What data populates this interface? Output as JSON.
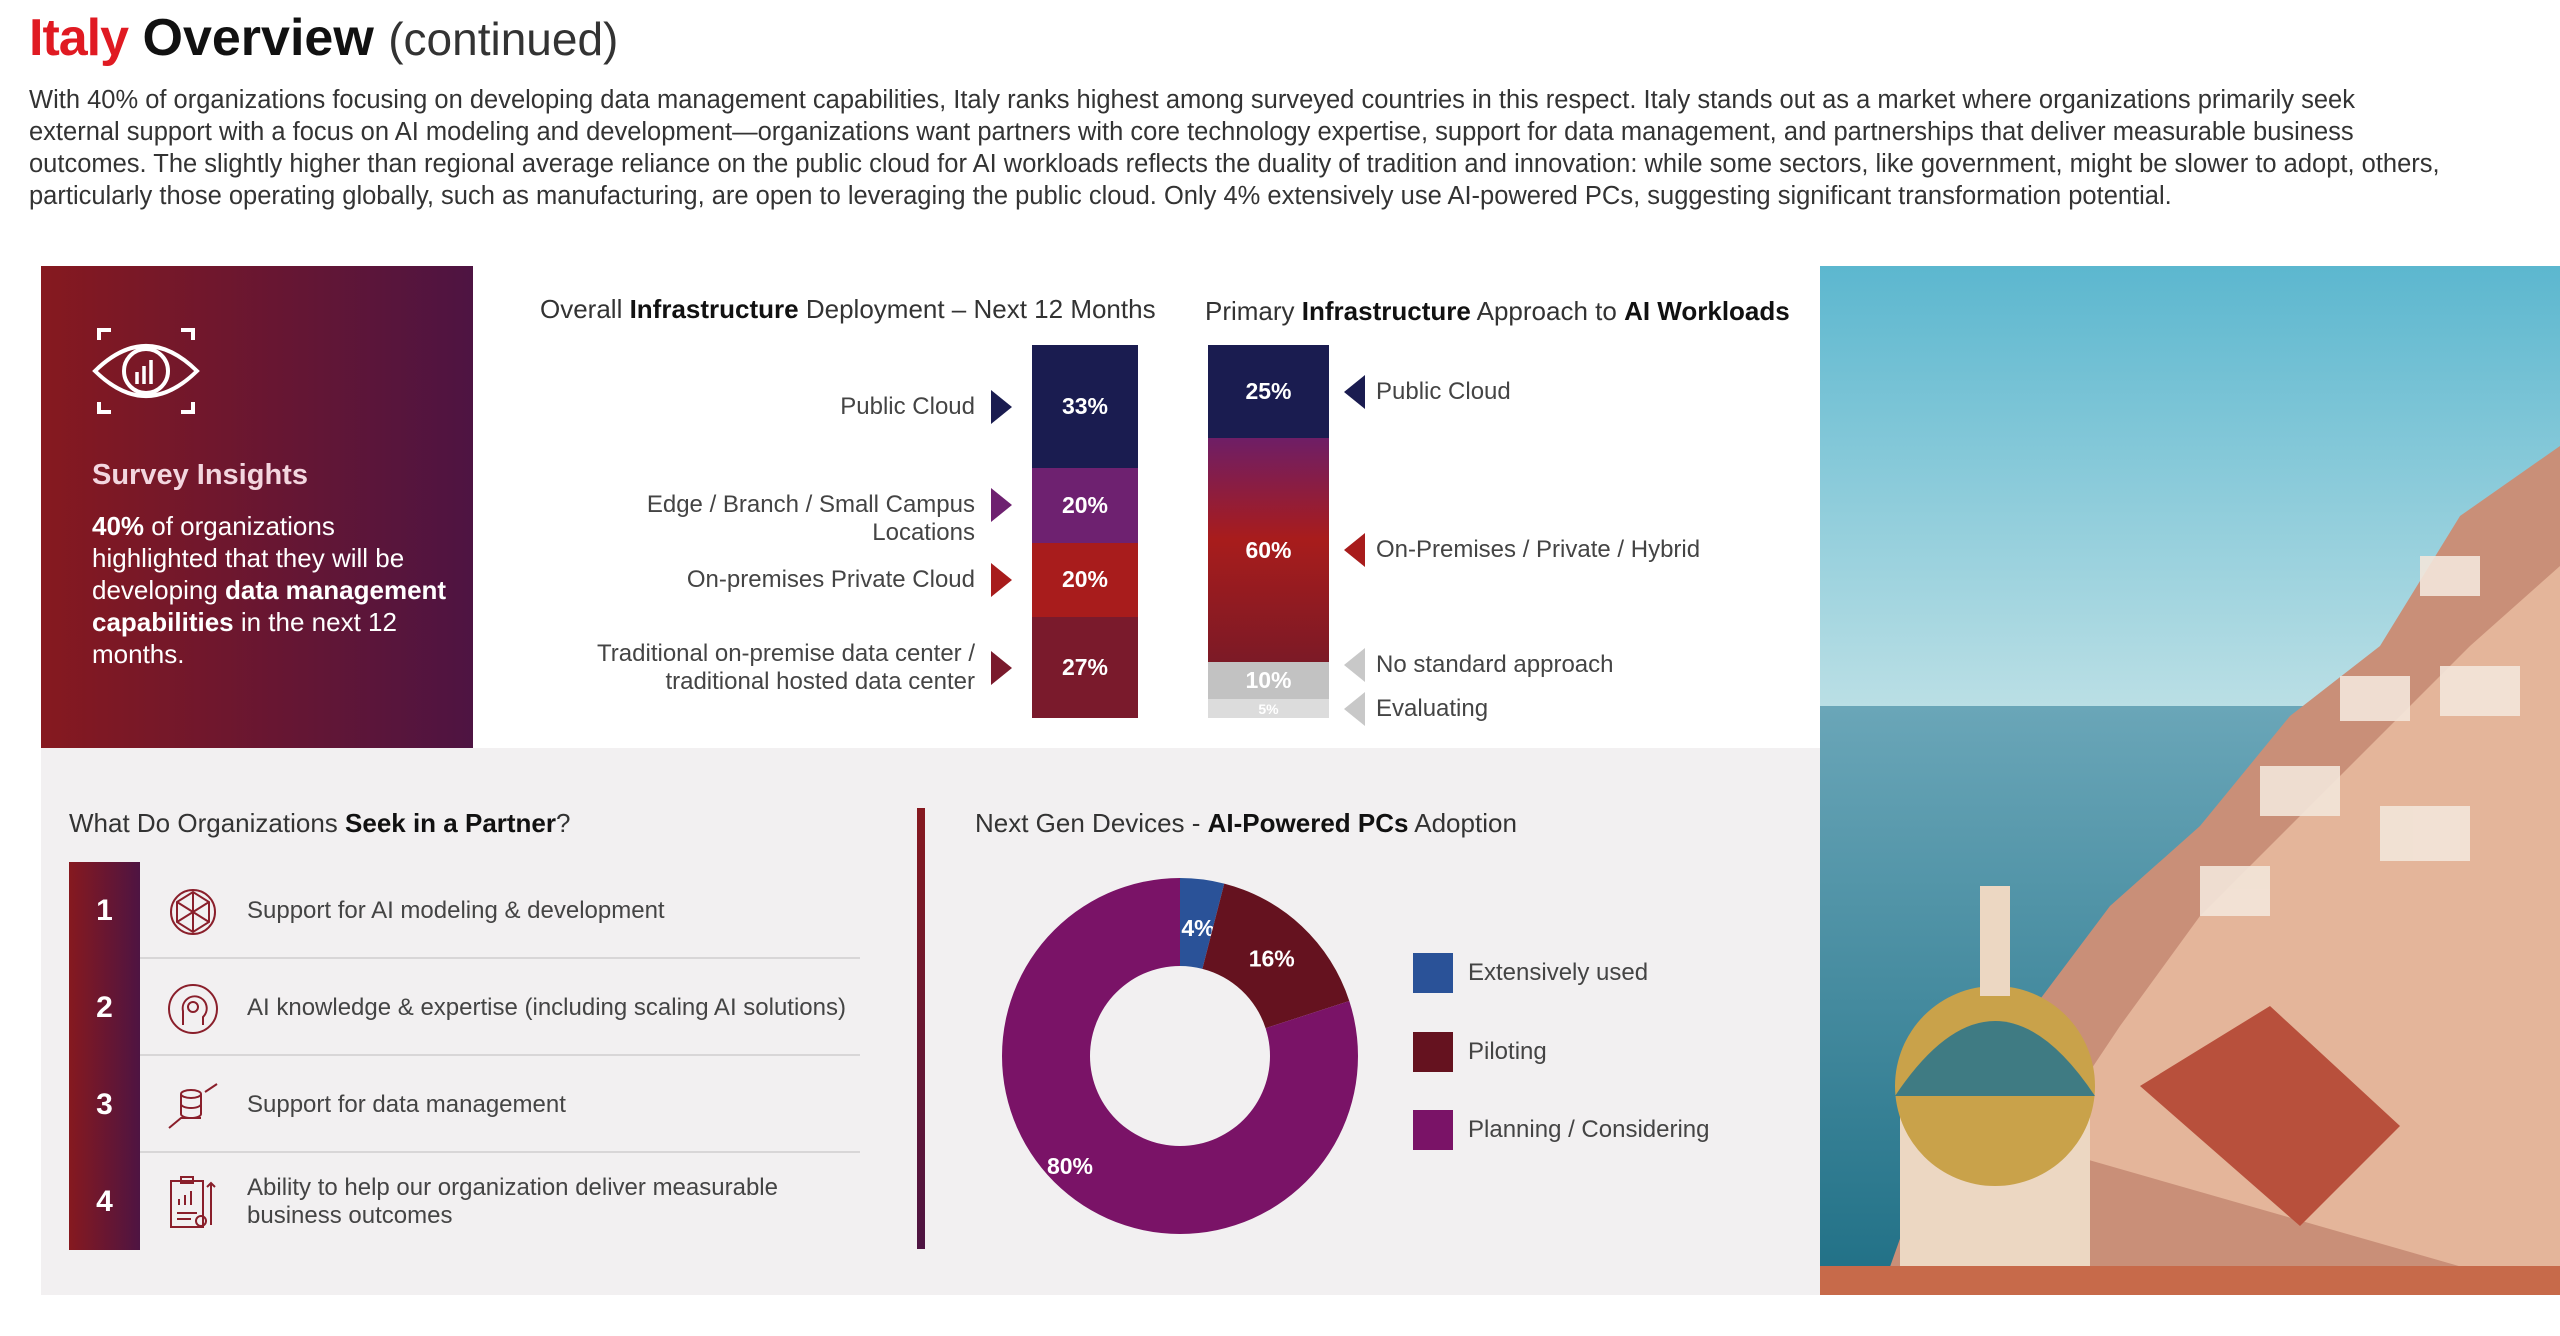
{
  "title": {
    "country": "Italy",
    "word": "Overview",
    "suffix": "(continued)"
  },
  "intro": "With 40% of organizations focusing on developing data management capabilities, Italy ranks highest among surveyed countries in this respect. Italy stands out as a market where organizations primarily seek external support with a focus on AI modeling and development—organizations want partners with core technology expertise, support for data management, and partnerships that deliver measurable business outcomes. The slightly higher than regional average reliance on the public cloud for AI workloads reflects the duality of tradition and innovation: while some sectors, like government, might be slower to adopt, others, particularly those operating globally, such as manufacturing, are open to leveraging the public cloud. Only 4% extensively use AI-powered PCs, suggesting significant transformation potential.",
  "survey": {
    "heading": "Survey Insights",
    "stat": "40%",
    "t1": " of organizations highlighted that they will be developing ",
    "b1": "data management capabilities",
    "t2": " in the next 12 months."
  },
  "partner": {
    "title_a": "What Do Organizations ",
    "title_b": "Seek in a Partner",
    "title_c": "?",
    "items": [
      {
        "num": "1",
        "text": "Support for AI modeling & development",
        "icon": "neural-network-icon"
      },
      {
        "num": "2",
        "text": "AI knowledge & expertise (including scaling AI solutions)",
        "icon": "head-gear-icon"
      },
      {
        "num": "3",
        "text": "Support for data management",
        "icon": "hand-database-icon"
      },
      {
        "num": "4",
        "text": "Ability to help our organization deliver measurable business outcomes",
        "icon": "clipboard-chart-icon"
      }
    ]
  },
  "chart_data": [
    {
      "type": "bar",
      "stacked": true,
      "title_a": "Overall ",
      "title_b": "Infrastructure",
      "title_c": " Deployment – Next 12 Months",
      "categories": [
        "Public Cloud",
        "Edge / Branch / Small Campus Locations",
        "On-premises Private Cloud",
        "Traditional on-premise data center / traditional hosted data center"
      ],
      "values": [
        33,
        20,
        20,
        27
      ],
      "labels": [
        "33%",
        "20%",
        "20%",
        "27%"
      ],
      "colors": [
        "#1a1c50",
        "#6e2170",
        "#a81c1c",
        "#7a1a2c"
      ]
    },
    {
      "type": "bar",
      "stacked": true,
      "title_a": "Primary ",
      "title_b": "Infrastructure",
      "title_c": " Approach to ",
      "title_d": "AI Workloads",
      "categories": [
        "Public Cloud",
        "On-Premises / Private / Hybrid",
        "No standard approach",
        "Evaluating"
      ],
      "values": [
        25,
        60,
        10,
        5
      ],
      "labels": [
        "25%",
        "60%",
        "10%",
        "5%"
      ],
      "colors": [
        "#1a1c50",
        "#a81c1c",
        "#c2c2c2",
        "#dcdcdc"
      ]
    },
    {
      "type": "pie",
      "donut": true,
      "title_a": "Next Gen Devices - ",
      "title_b": "AI-Powered PCs",
      "title_c": " Adoption",
      "categories": [
        "Extensively used",
        "Piloting",
        "Planning / Considering"
      ],
      "values": [
        4,
        16,
        80
      ],
      "labels": [
        "4%",
        "16%",
        "80%"
      ],
      "colors": [
        "#2a5298",
        "#65121f",
        "#7a1367"
      ]
    }
  ]
}
